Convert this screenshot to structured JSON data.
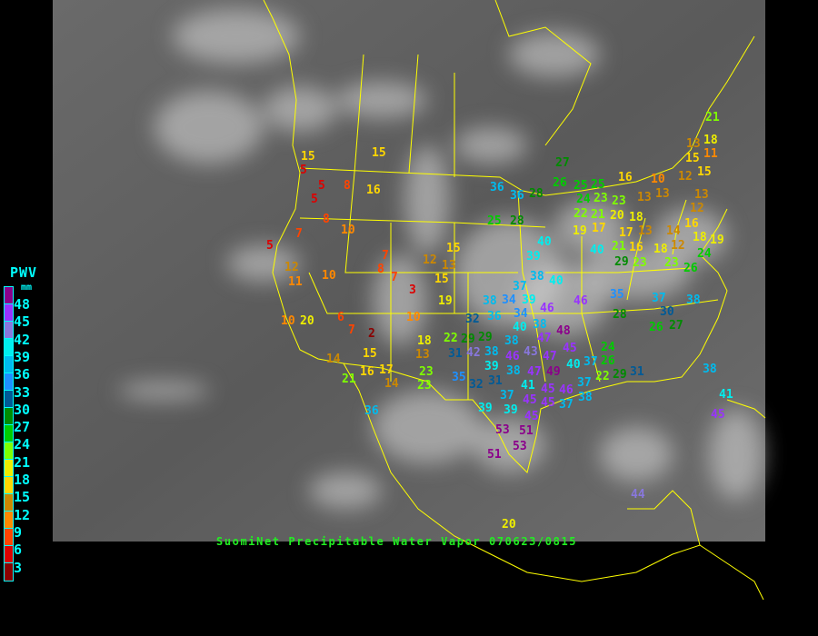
{
  "caption": "SuomiNet Precipitable Water Vapor 070623/0815",
  "legend": {
    "title": "PWV",
    "unit": "mm",
    "labels": [
      "48",
      "45",
      "42",
      "39",
      "36",
      "33",
      "30",
      "27",
      "24",
      "21",
      "18",
      "15",
      "12",
      "9",
      "6",
      "3"
    ],
    "colors": [
      "#8b008b",
      "#9933ff",
      "#8877dd",
      "#00eeee",
      "#00bbee",
      "#1e90ff",
      "#005a96",
      "#008b00",
      "#00cc00",
      "#7fff00",
      "#eeee00",
      "#ffd700",
      "#cc8800",
      "#ff8800",
      "#ff4400",
      "#dd0000",
      "#8b0000"
    ],
    "text_color": "#00ffff"
  },
  "map": {
    "border_color": "#ffff00"
  },
  "stations": [
    "5",
    "5",
    "5",
    "8",
    "8",
    "7",
    "5",
    "12",
    "11",
    "10",
    "10",
    "16",
    "15",
    "15",
    "7",
    "8",
    "7",
    "3",
    "12",
    "13",
    "15",
    "19",
    "15",
    "10",
    "6",
    "7",
    "2",
    "10",
    "20",
    "15",
    "14",
    "16",
    "17",
    "14",
    "21",
    "18",
    "13",
    "23",
    "23",
    "22",
    "29",
    "29",
    "36",
    "36",
    "28",
    "25",
    "28",
    "27",
    "26",
    "25",
    "25",
    "23",
    "24",
    "22",
    "21",
    "23",
    "40",
    "39",
    "38",
    "40",
    "37",
    "40",
    "38",
    "34",
    "39",
    "34",
    "32",
    "36",
    "40",
    "38",
    "38",
    "46",
    "47",
    "48",
    "43",
    "46",
    "38",
    "39",
    "42",
    "38",
    "47",
    "45",
    "47",
    "41",
    "49",
    "40",
    "37",
    "31",
    "31",
    "32",
    "35",
    "37",
    "45",
    "45",
    "46",
    "37",
    "38",
    "45",
    "37",
    "46",
    "35",
    "28",
    "24",
    "26",
    "22",
    "29",
    "31",
    "37",
    "30",
    "26",
    "27",
    "38",
    "39",
    "39",
    "45",
    "53",
    "51",
    "53",
    "51",
    "36",
    "38",
    "41",
    "45",
    "44",
    "20",
    "16",
    "10",
    "12",
    "15",
    "21",
    "18",
    "11",
    "15",
    "13",
    "13",
    "13",
    "13",
    "12",
    "16",
    "14",
    "18",
    "12",
    "19",
    "24",
    "18",
    "23",
    "26",
    "17",
    "20",
    "18",
    "17",
    "13",
    "21",
    "16",
    "29",
    "23",
    "19"
  ]
}
